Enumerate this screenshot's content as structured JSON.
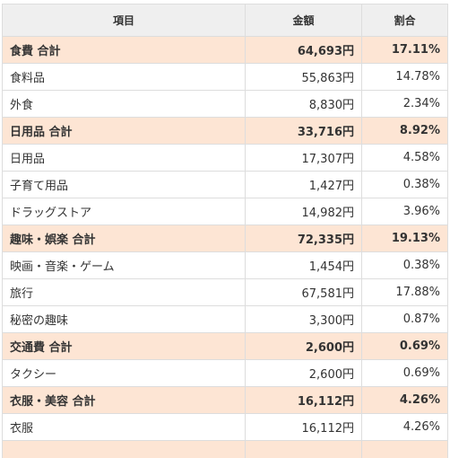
{
  "table": {
    "headers": [
      "項目",
      "金額",
      "割合"
    ],
    "rows": [
      {
        "kind": "total",
        "label": "食費 合計",
        "amount": "64,693円",
        "ratio": "17.11%"
      },
      {
        "kind": "item",
        "label": "食料品",
        "amount": "55,863円",
        "ratio": "14.78%"
      },
      {
        "kind": "item",
        "label": "外食",
        "amount": "8,830円",
        "ratio": "2.34%"
      },
      {
        "kind": "total",
        "label": "日用品 合計",
        "amount": "33,716円",
        "ratio": "8.92%"
      },
      {
        "kind": "item",
        "label": "日用品",
        "amount": "17,307円",
        "ratio": "4.58%"
      },
      {
        "kind": "item",
        "label": "子育て用品",
        "amount": "1,427円",
        "ratio": "0.38%"
      },
      {
        "kind": "item",
        "label": "ドラッグストア",
        "amount": "14,982円",
        "ratio": "3.96%"
      },
      {
        "kind": "total",
        "label": "趣味・娯楽 合計",
        "amount": "72,335円",
        "ratio": "19.13%"
      },
      {
        "kind": "item",
        "label": "映画・音楽・ゲーム",
        "amount": "1,454円",
        "ratio": "0.38%"
      },
      {
        "kind": "item",
        "label": "旅行",
        "amount": "67,581円",
        "ratio": "17.88%"
      },
      {
        "kind": "item",
        "label": "秘密の趣味",
        "amount": "3,300円",
        "ratio": "0.87%"
      },
      {
        "kind": "total",
        "label": "交通費 合計",
        "amount": "2,600円",
        "ratio": "0.69%"
      },
      {
        "kind": "item",
        "label": "タクシー",
        "amount": "2,600円",
        "ratio": "0.69%"
      },
      {
        "kind": "total",
        "label": "衣服・美容 合計",
        "amount": "16,112円",
        "ratio": "4.26%"
      },
      {
        "kind": "item",
        "label": "衣服",
        "amount": "16,112円",
        "ratio": "4.26%"
      },
      {
        "kind": "total",
        "label": "",
        "amount": "",
        "ratio": ""
      }
    ]
  },
  "colors": {
    "total_row_bg": "#fde5d4",
    "header_bg": "#efefef",
    "border": "#dddddd"
  }
}
